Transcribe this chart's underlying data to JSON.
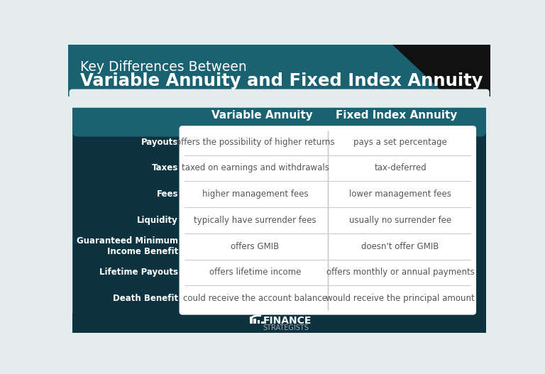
{
  "title_line1": "Key Differences Between",
  "title_line2": "Variable Annuity and Fixed Index Annuity",
  "header_color": "#1a6272",
  "dark_bg_color": "#0d3340",
  "cell_bg_color": "#ffffff",
  "cell_text_color": "#555555",
  "col1_header": "Variable Annuity",
  "col2_header": "Fixed Index Annuity",
  "rows": [
    {
      "label": "Payouts",
      "col1": "offers the possibility of higher returns",
      "col2": "pays a set percentage"
    },
    {
      "label": "Taxes",
      "col1": "taxed on earnings and withdrawals",
      "col2": "tax-deferred"
    },
    {
      "label": "Fees",
      "col1": "higher management fees",
      "col2": "lower management fees"
    },
    {
      "label": "Liquidity",
      "col1": "typically have surrender fees",
      "col2": "usually no surrender fee"
    },
    {
      "label": "Guaranteed Minimum\nIncome Benefit",
      "col1": "offers GMIB",
      "col2": "doesn't offer GMIB"
    },
    {
      "label": "Lifetime Payouts",
      "col1": "offers lifetime income",
      "col2": "offers monthly or annual payments"
    },
    {
      "label": "Death Benefit",
      "col1": "could receive the account balance",
      "col2": "would receive the principal amount"
    }
  ],
  "outer_bg": "#e4ecee"
}
